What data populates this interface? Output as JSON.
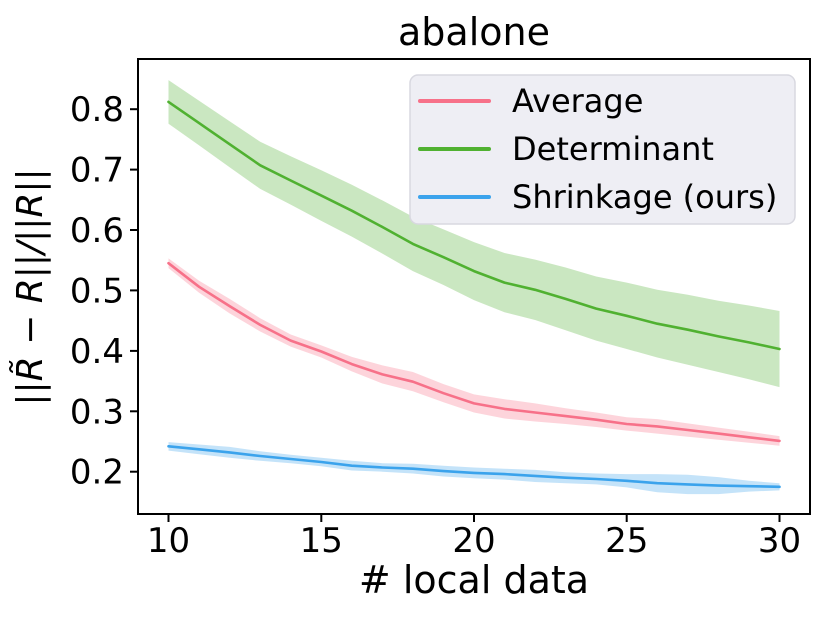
{
  "figure": {
    "title": "abalone"
  },
  "chart_data": {
    "type": "line",
    "title": "abalone",
    "xlabel": "# local data",
    "ylabel": "||R̃ − R||/||R||",
    "xlim": [
      9.0,
      31.0
    ],
    "ylim": [
      0.13,
      0.883
    ],
    "xticks": [
      10,
      15,
      20,
      25,
      30
    ],
    "yticks": [
      0.2,
      0.3,
      0.4,
      0.5,
      0.6,
      0.7,
      0.8
    ],
    "grid": false,
    "legend_position": "upper right",
    "band_opacity": 0.3,
    "x": [
      10,
      11,
      12,
      13,
      14,
      15,
      16,
      17,
      18,
      19,
      20,
      21,
      22,
      23,
      24,
      25,
      26,
      27,
      28,
      29,
      30
    ],
    "series": [
      {
        "name": "Average",
        "color": "#f77189",
        "values": [
          0.545,
          0.506,
          0.474,
          0.443,
          0.417,
          0.399,
          0.378,
          0.361,
          0.349,
          0.33,
          0.313,
          0.304,
          0.298,
          0.292,
          0.286,
          0.279,
          0.275,
          0.269,
          0.263,
          0.257,
          0.251
        ],
        "band_lower": [
          0.537,
          0.496,
          0.462,
          0.432,
          0.407,
          0.389,
          0.366,
          0.346,
          0.333,
          0.315,
          0.298,
          0.288,
          0.283,
          0.279,
          0.274,
          0.268,
          0.263,
          0.258,
          0.253,
          0.248,
          0.243
        ],
        "band_upper": [
          0.553,
          0.516,
          0.486,
          0.454,
          0.427,
          0.409,
          0.39,
          0.376,
          0.365,
          0.345,
          0.328,
          0.32,
          0.313,
          0.305,
          0.298,
          0.29,
          0.287,
          0.28,
          0.273,
          0.266,
          0.259
        ]
      },
      {
        "name": "Determinant",
        "color": "#50b131",
        "values": [
          0.812,
          0.777,
          0.742,
          0.707,
          0.682,
          0.657,
          0.632,
          0.605,
          0.577,
          0.555,
          0.532,
          0.513,
          0.501,
          0.486,
          0.47,
          0.458,
          0.445,
          0.435,
          0.424,
          0.414,
          0.403
        ],
        "band_lower": [
          0.776,
          0.74,
          0.704,
          0.668,
          0.642,
          0.615,
          0.589,
          0.561,
          0.532,
          0.509,
          0.484,
          0.464,
          0.451,
          0.434,
          0.417,
          0.403,
          0.389,
          0.377,
          0.365,
          0.353,
          0.34
        ],
        "band_upper": [
          0.848,
          0.814,
          0.78,
          0.746,
          0.722,
          0.699,
          0.675,
          0.649,
          0.622,
          0.601,
          0.58,
          0.562,
          0.551,
          0.538,
          0.523,
          0.513,
          0.501,
          0.493,
          0.483,
          0.475,
          0.466
        ]
      },
      {
        "name": "Shrinkage (ours)",
        "color": "#3ba3ec",
        "values": [
          0.242,
          0.237,
          0.232,
          0.226,
          0.221,
          0.216,
          0.21,
          0.207,
          0.205,
          0.201,
          0.198,
          0.196,
          0.193,
          0.19,
          0.188,
          0.185,
          0.181,
          0.179,
          0.177,
          0.176,
          0.175
        ],
        "band_lower": [
          0.235,
          0.229,
          0.223,
          0.218,
          0.214,
          0.209,
          0.202,
          0.2,
          0.197,
          0.192,
          0.189,
          0.187,
          0.183,
          0.181,
          0.179,
          0.174,
          0.166,
          0.163,
          0.163,
          0.167,
          0.169
        ],
        "band_upper": [
          0.249,
          0.245,
          0.241,
          0.234,
          0.228,
          0.223,
          0.218,
          0.214,
          0.213,
          0.21,
          0.207,
          0.205,
          0.203,
          0.199,
          0.197,
          0.196,
          0.196,
          0.195,
          0.191,
          0.185,
          0.181
        ]
      }
    ]
  },
  "style_colors": {
    "spine": "#000000",
    "legend_face": "#eeeef4",
    "legend_edge": "#d8d8e0"
  }
}
